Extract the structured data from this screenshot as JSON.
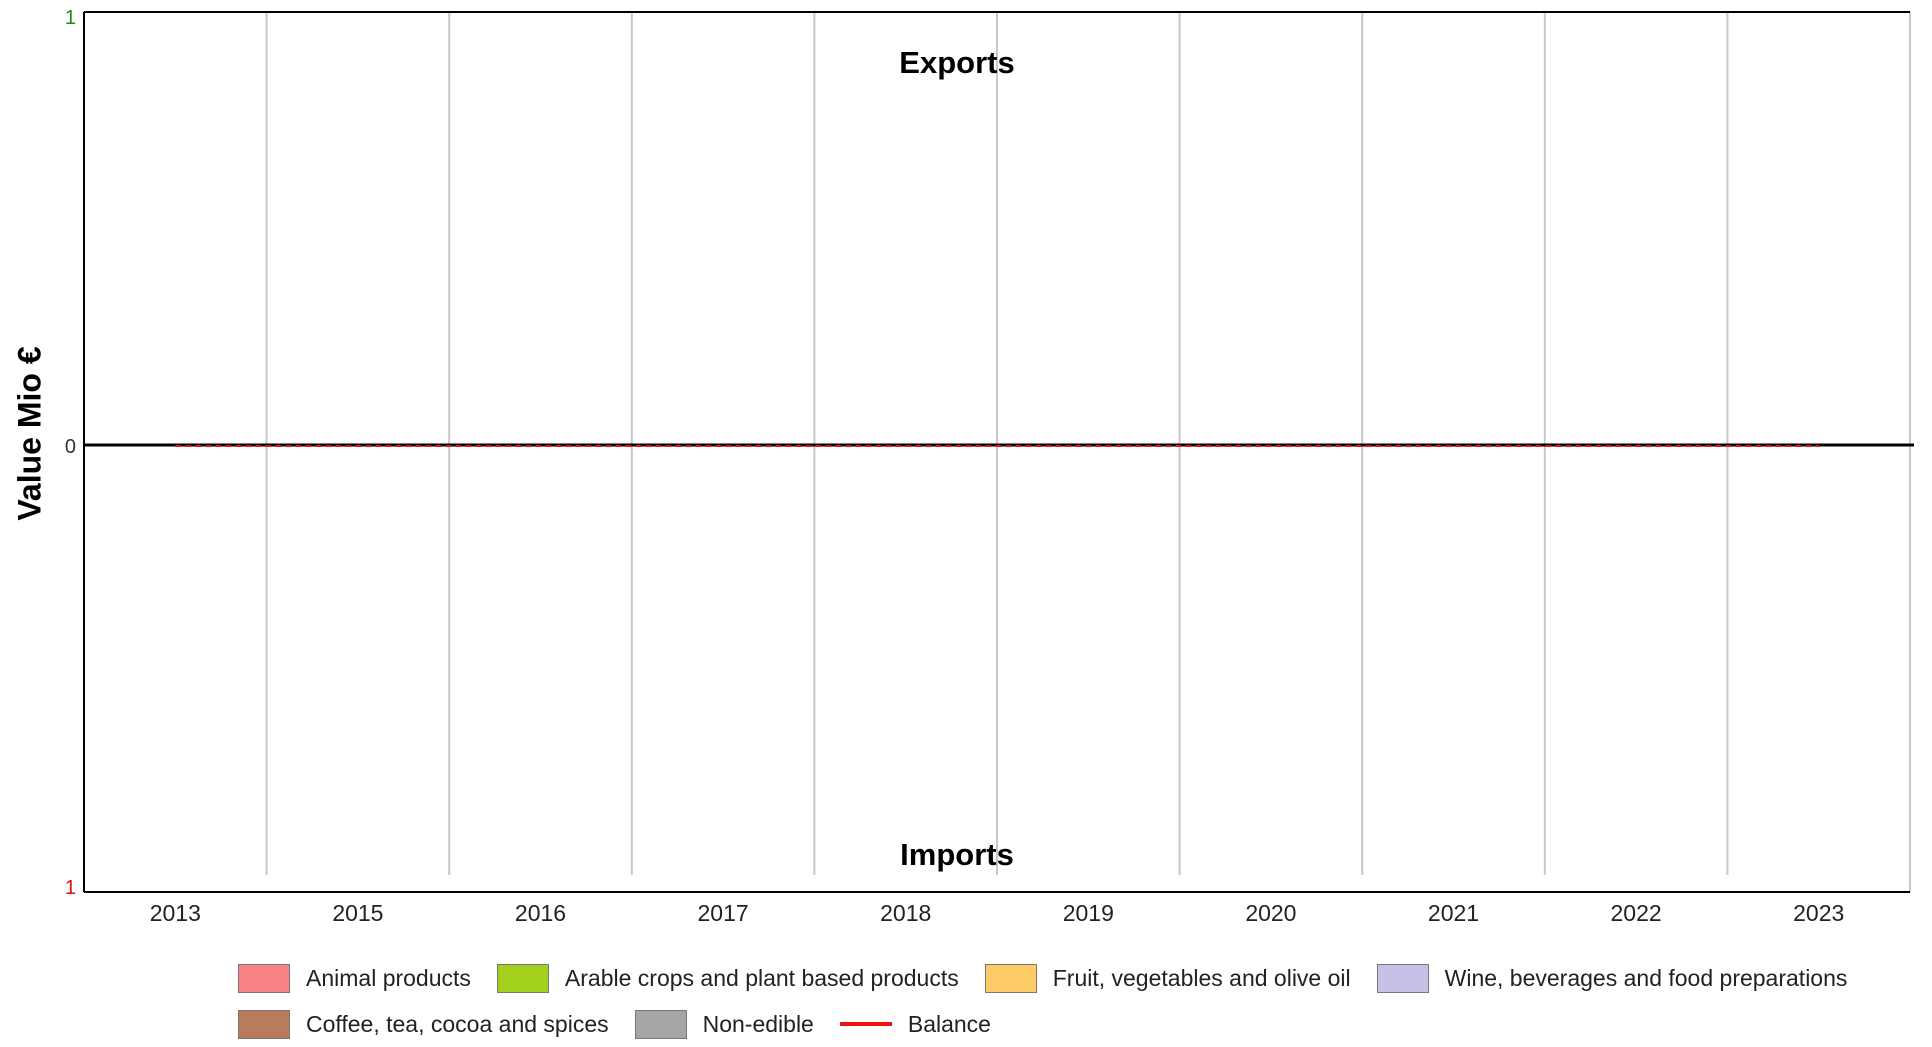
{
  "chart_data": {
    "type": "bar",
    "title": "",
    "ylabel": "Value Mio €",
    "xlabel": "",
    "top_label": "Exports",
    "bottom_label": "Imports",
    "ylim": [
      -1,
      1
    ],
    "y_ticks": [
      {
        "value": 1,
        "label": "1",
        "color": "#1a8a1a"
      },
      {
        "value": 0,
        "label": "0",
        "color": "#333333"
      },
      {
        "value": -1,
        "label": "1",
        "color": "#dd1111"
      }
    ],
    "categories": [
      "2013",
      "2015",
      "2016",
      "2017",
      "2018",
      "2019",
      "2020",
      "2021",
      "2022",
      "2023"
    ],
    "series": [
      {
        "name": "Animal products",
        "color": "#f98386",
        "values": [
          0,
          0,
          0,
          0,
          0,
          0,
          0,
          0,
          0,
          0
        ]
      },
      {
        "name": "Arable crops and plant based products",
        "color": "#a3d11b",
        "values": [
          0,
          0,
          0,
          0,
          0,
          0,
          0,
          0,
          0,
          0
        ]
      },
      {
        "name": "Fruit, vegetables and olive oil",
        "color": "#fdcc66",
        "values": [
          0,
          0,
          0,
          0,
          0,
          0,
          0,
          0,
          0,
          0
        ]
      },
      {
        "name": "Wine, beverages and food preparations",
        "color": "#c9c0e8",
        "values": [
          0,
          0,
          0,
          0,
          0,
          0,
          0,
          0,
          0,
          0
        ]
      },
      {
        "name": "Coffee, tea, cocoa and spices",
        "color": "#b87c5c",
        "values": [
          0,
          0,
          0,
          0,
          0,
          0,
          0,
          0,
          0,
          0
        ]
      },
      {
        "name": "Non-edible",
        "color": "#a6a6a6",
        "values": [
          0,
          0,
          0,
          0,
          0,
          0,
          0,
          0,
          0,
          0
        ]
      },
      {
        "name": "Balance",
        "color": "#ee1111",
        "type": "line",
        "values": [
          0,
          0,
          0,
          0,
          0,
          0,
          0,
          0,
          0,
          0
        ]
      }
    ],
    "grid": true,
    "legend_position": "bottom"
  }
}
